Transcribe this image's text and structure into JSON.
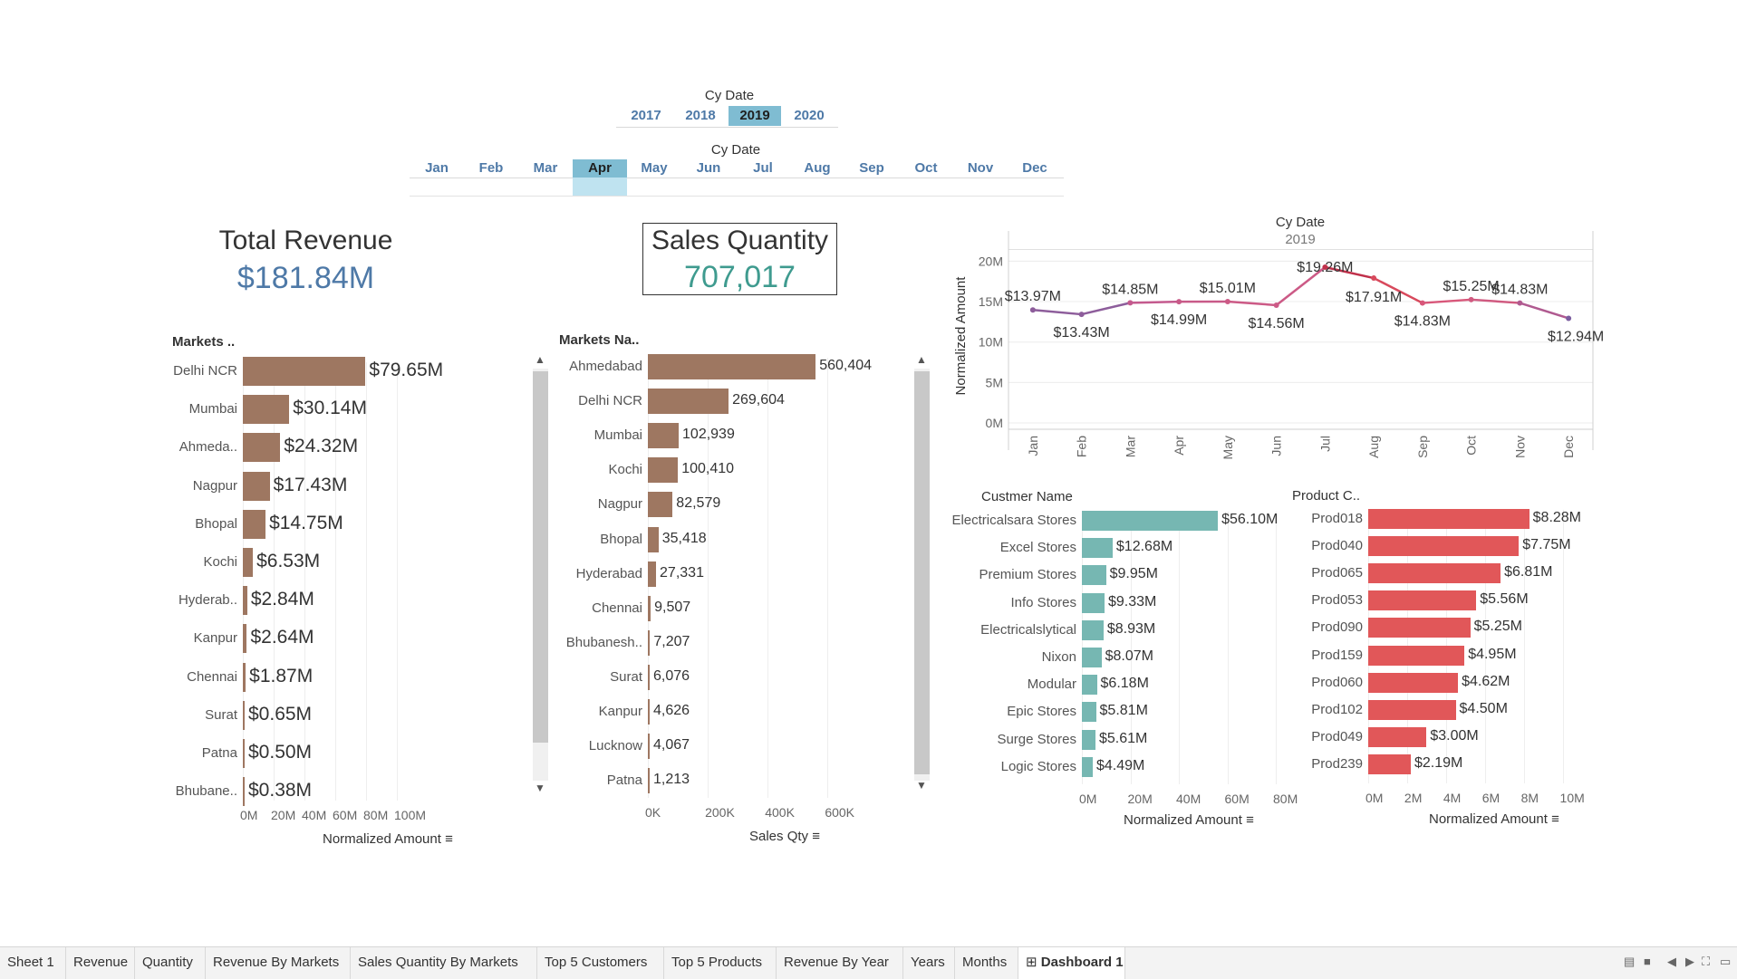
{
  "year_filter": {
    "title": "Cy Date",
    "items": [
      "2017",
      "2018",
      "2019",
      "2020"
    ],
    "selected": "2019"
  },
  "month_filter": {
    "title": "Cy Date",
    "items": [
      "Jan",
      "Feb",
      "Mar",
      "Apr",
      "May",
      "Jun",
      "Jul",
      "Aug",
      "Sep",
      "Oct",
      "Nov",
      "Dec"
    ],
    "selected": "Apr"
  },
  "kpi_revenue": {
    "title": "Total Revenue",
    "value": "$181.84M",
    "color": "#4e79a7"
  },
  "kpi_quantity": {
    "title": "Sales Quantity",
    "value": "707,017",
    "color": "#3f9b8f"
  },
  "colors": {
    "revenue_bar": "#9e7761",
    "qty_bar": "#9e7761",
    "customer_bar": "#76b7b2",
    "product_bar": "#e15759",
    "accent": "#4e79a7"
  },
  "chart_data": [
    {
      "type": "bar",
      "orientation": "horizontal",
      "header": "Markets ..",
      "categories": [
        "Delhi NCR",
        "Mumbai",
        "Ahmeda..",
        "Nagpur",
        "Bhopal",
        "Kochi",
        "Hyderab..",
        "Kanpur",
        "Chennai",
        "Surat",
        "Patna",
        "Bhubane.."
      ],
      "values": [
        79.65,
        30.14,
        24.32,
        17.43,
        14.75,
        6.53,
        2.84,
        2.64,
        1.87,
        0.65,
        0.5,
        0.38
      ],
      "value_labels": [
        "$79.65M",
        "$30.14M",
        "$24.32M",
        "$17.43M",
        "$14.75M",
        "$6.53M",
        "$2.84M",
        "$2.64M",
        "$1.87M",
        "$0.65M",
        "$0.50M",
        "$0.38M"
      ],
      "xlabel": "Normalized Amount",
      "xticks": [
        "0M",
        "20M",
        "40M",
        "60M",
        "80M",
        "100M"
      ],
      "tick_values": [
        0,
        20,
        40,
        60,
        80,
        100
      ],
      "xlim": [
        0,
        120
      ]
    },
    {
      "type": "bar",
      "orientation": "horizontal",
      "header": "Markets Na..",
      "categories": [
        "Ahmedabad",
        "Delhi NCR",
        "Mumbai",
        "Kochi",
        "Nagpur",
        "Bhopal",
        "Hyderabad",
        "Chennai",
        "Bhubanesh..",
        "Surat",
        "Kanpur",
        "Lucknow",
        "Patna"
      ],
      "values": [
        560404,
        269604,
        102939,
        100410,
        82579,
        35418,
        27331,
        9507,
        7207,
        6076,
        4626,
        4067,
        1213
      ],
      "value_labels": [
        "560,404",
        "269,604",
        "102,939",
        "100,410",
        "82,579",
        "35,418",
        "27,331",
        "9,507",
        "7,207",
        "6,076",
        "4,626",
        "4,067",
        "1,213"
      ],
      "xlabel": "Sales Qty",
      "xticks": [
        "0K",
        "200K",
        "400K",
        "600K"
      ],
      "tick_values": [
        0,
        200000,
        400000,
        600000
      ],
      "xlim": [
        0,
        720000
      ]
    },
    {
      "type": "line",
      "header_title": "Cy Date",
      "header_sub": "2019",
      "x": [
        "Jan",
        "Feb",
        "Mar",
        "Apr",
        "May",
        "Jun",
        "Jul",
        "Aug",
        "Sep",
        "Oct",
        "Nov",
        "Dec"
      ],
      "values": [
        13.97,
        13.43,
        14.85,
        14.99,
        15.01,
        14.56,
        19.26,
        17.91,
        14.83,
        15.25,
        14.83,
        12.94
      ],
      "value_labels": [
        "$13.97M",
        "$13.43M",
        "$14.85M",
        "$14.99M",
        "$15.01M",
        "$14.56M",
        "$19.26M",
        "$17.91M",
        "$14.83M",
        "$15.25M",
        "$14.83M",
        "$12.94M"
      ],
      "ylabel": "Normalized Amount",
      "yticks": [
        "0M",
        "5M",
        "10M",
        "15M",
        "20M"
      ],
      "tick_values": [
        0,
        5,
        10,
        15,
        20
      ],
      "ylim": [
        0,
        21.5
      ]
    },
    {
      "type": "bar",
      "orientation": "horizontal",
      "header": "Custmer Name",
      "categories": [
        "Electricalsara Stores",
        "Excel Stores",
        "Premium Stores",
        "Info Stores",
        "Electricalslytical",
        "Nixon",
        "Modular",
        "Epic Stores",
        "Surge Stores",
        "Logic Stores"
      ],
      "values": [
        56.1,
        12.68,
        9.95,
        9.33,
        8.93,
        8.07,
        6.18,
        5.81,
        5.61,
        4.49
      ],
      "value_labels": [
        "$56.10M",
        "$12.68M",
        "$9.95M",
        "$9.33M",
        "$8.93M",
        "$8.07M",
        "$6.18M",
        "$5.81M",
        "$5.61M",
        "$4.49M"
      ],
      "xlabel": "Normalized Amount",
      "xticks": [
        "0M",
        "20M",
        "40M",
        "60M",
        "80M"
      ],
      "tick_values": [
        0,
        20,
        40,
        60,
        80
      ],
      "xlim": [
        0,
        80
      ]
    },
    {
      "type": "bar",
      "orientation": "horizontal",
      "header": "Product C..",
      "categories": [
        "Prod018",
        "Prod040",
        "Prod065",
        "Prod053",
        "Prod090",
        "Prod159",
        "Prod060",
        "Prod102",
        "Prod049",
        "Prod239"
      ],
      "values": [
        8.28,
        7.75,
        6.81,
        5.56,
        5.25,
        4.95,
        4.62,
        4.5,
        3.0,
        2.19
      ],
      "value_labels": [
        "$8.28M",
        "$7.75M",
        "$6.81M",
        "$5.56M",
        "$5.25M",
        "$4.95M",
        "$4.62M",
        "$4.50M",
        "$3.00M",
        "$2.19M"
      ],
      "xlabel": "Normalized Amount",
      "xticks": [
        "0M",
        "2M",
        "4M",
        "6M",
        "8M",
        "10M"
      ],
      "tick_values": [
        0,
        2,
        4,
        6,
        8,
        10
      ],
      "xlim": [
        0,
        11
      ]
    }
  ],
  "sheet_tabs": [
    "Sheet 1",
    "Revenue",
    "Quantity",
    "Revenue By Markets",
    "Sales Quantity By Markets",
    "Top 5 Customers",
    "Top 5 Products",
    "Revenue By Year",
    "Years",
    "Months",
    "Dashboard 1"
  ],
  "active_tab": "Dashboard 1",
  "tab_icon": "dashboard-grid-icon",
  "status_controls": [
    "list-view-icon",
    "grid-view-icon",
    "prev-sheet-icon",
    "next-sheet-icon",
    "fullscreen-icon",
    "present-icon"
  ]
}
